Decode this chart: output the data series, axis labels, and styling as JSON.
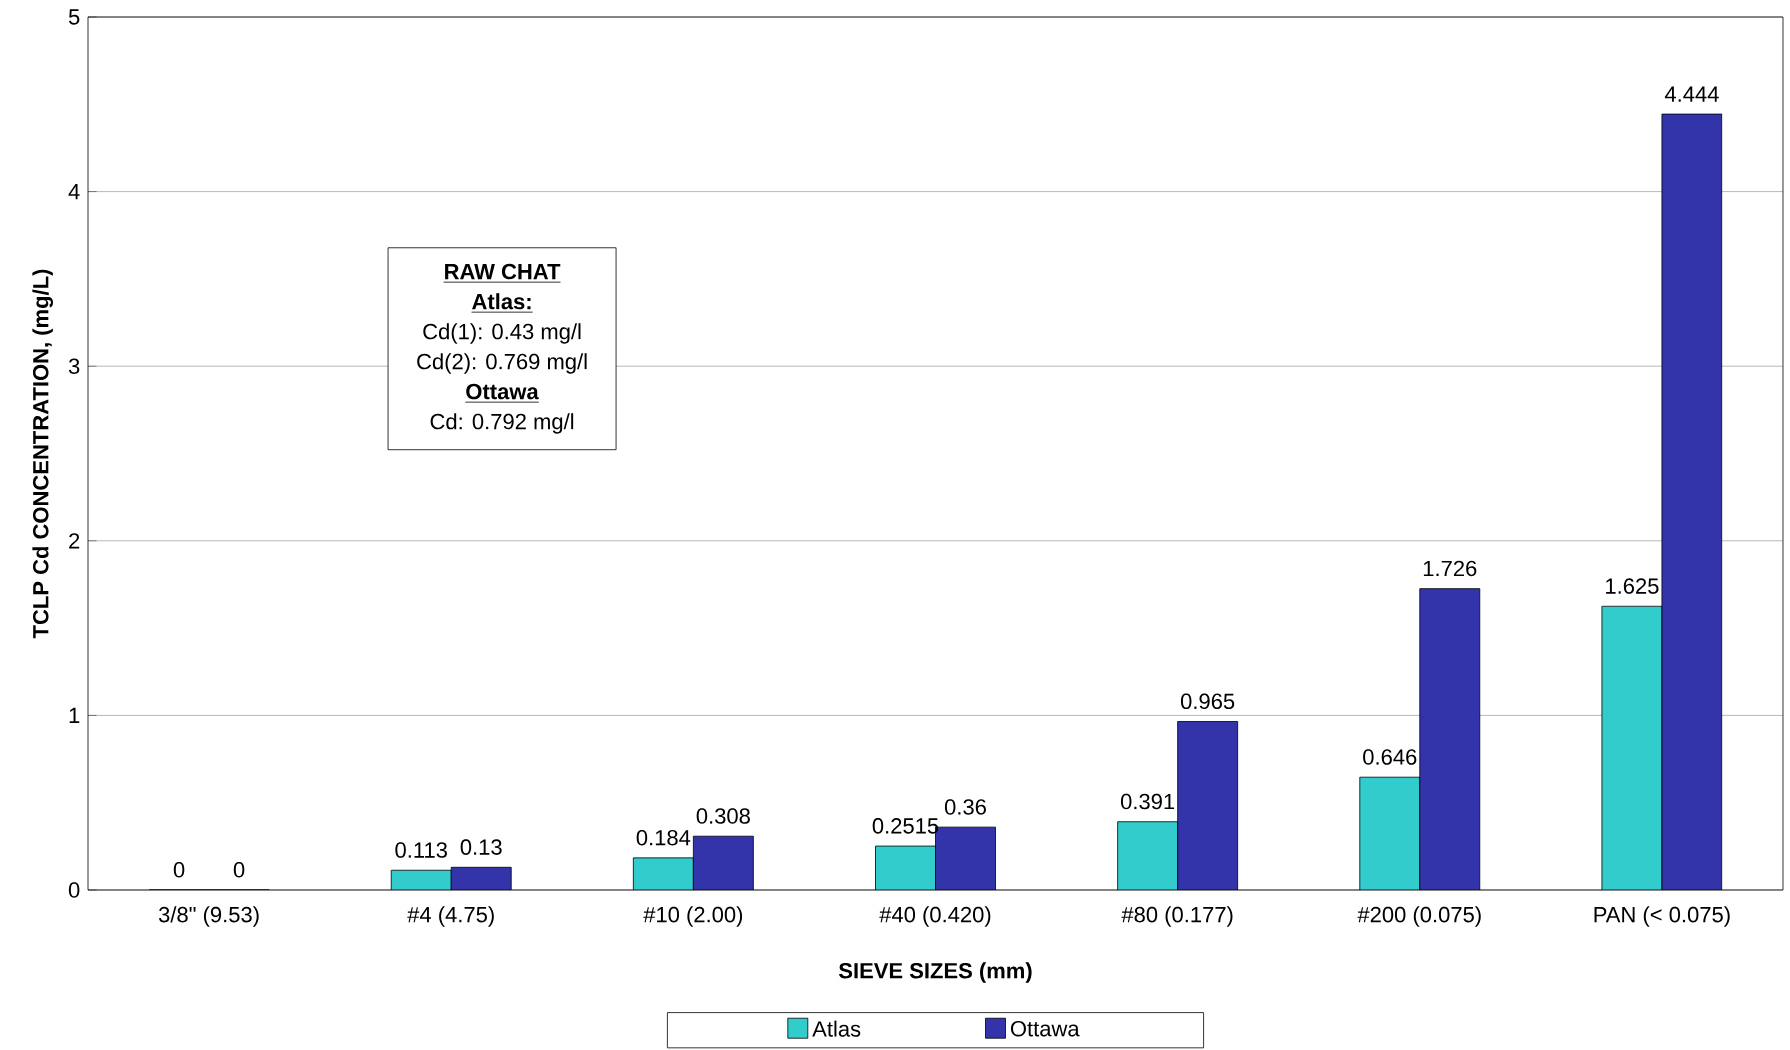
{
  "chart_data": {
    "type": "bar",
    "xlabel": "SIEVE SIZES (mm)",
    "ylabel": "TCLP Cd CONCENTRATION, (mg/L)",
    "categories": [
      "3/8\" (9.53)",
      "#4 (4.75)",
      "#10 (2.00)",
      "#40 (0.420)",
      "#80 (0.177)",
      "#200 (0.075)",
      "PAN (< 0.075)"
    ],
    "series": [
      {
        "name": "Atlas",
        "color": "#33cccc",
        "values": [
          0,
          0.113,
          0.184,
          0.2515,
          0.391,
          0.646,
          1.625
        ]
      },
      {
        "name": "Ottawa",
        "color": "#3333aa",
        "values": [
          0,
          0.13,
          0.308,
          0.36,
          0.965,
          1.726,
          4.444
        ]
      }
    ],
    "ylim": [
      0,
      5
    ],
    "yticks": [
      0,
      1,
      2,
      3,
      4,
      5
    ],
    "grid": "y",
    "legend": "bottom",
    "data_labels": true,
    "annotations": [
      "**RAW CHAT**",
      "**Atlas:**",
      "Cd(1): 0.43 mg/l",
      "Cd(2): 0.769 mg/l",
      "**Ottawa**",
      "Cd: 0.792 mg/l"
    ]
  }
}
